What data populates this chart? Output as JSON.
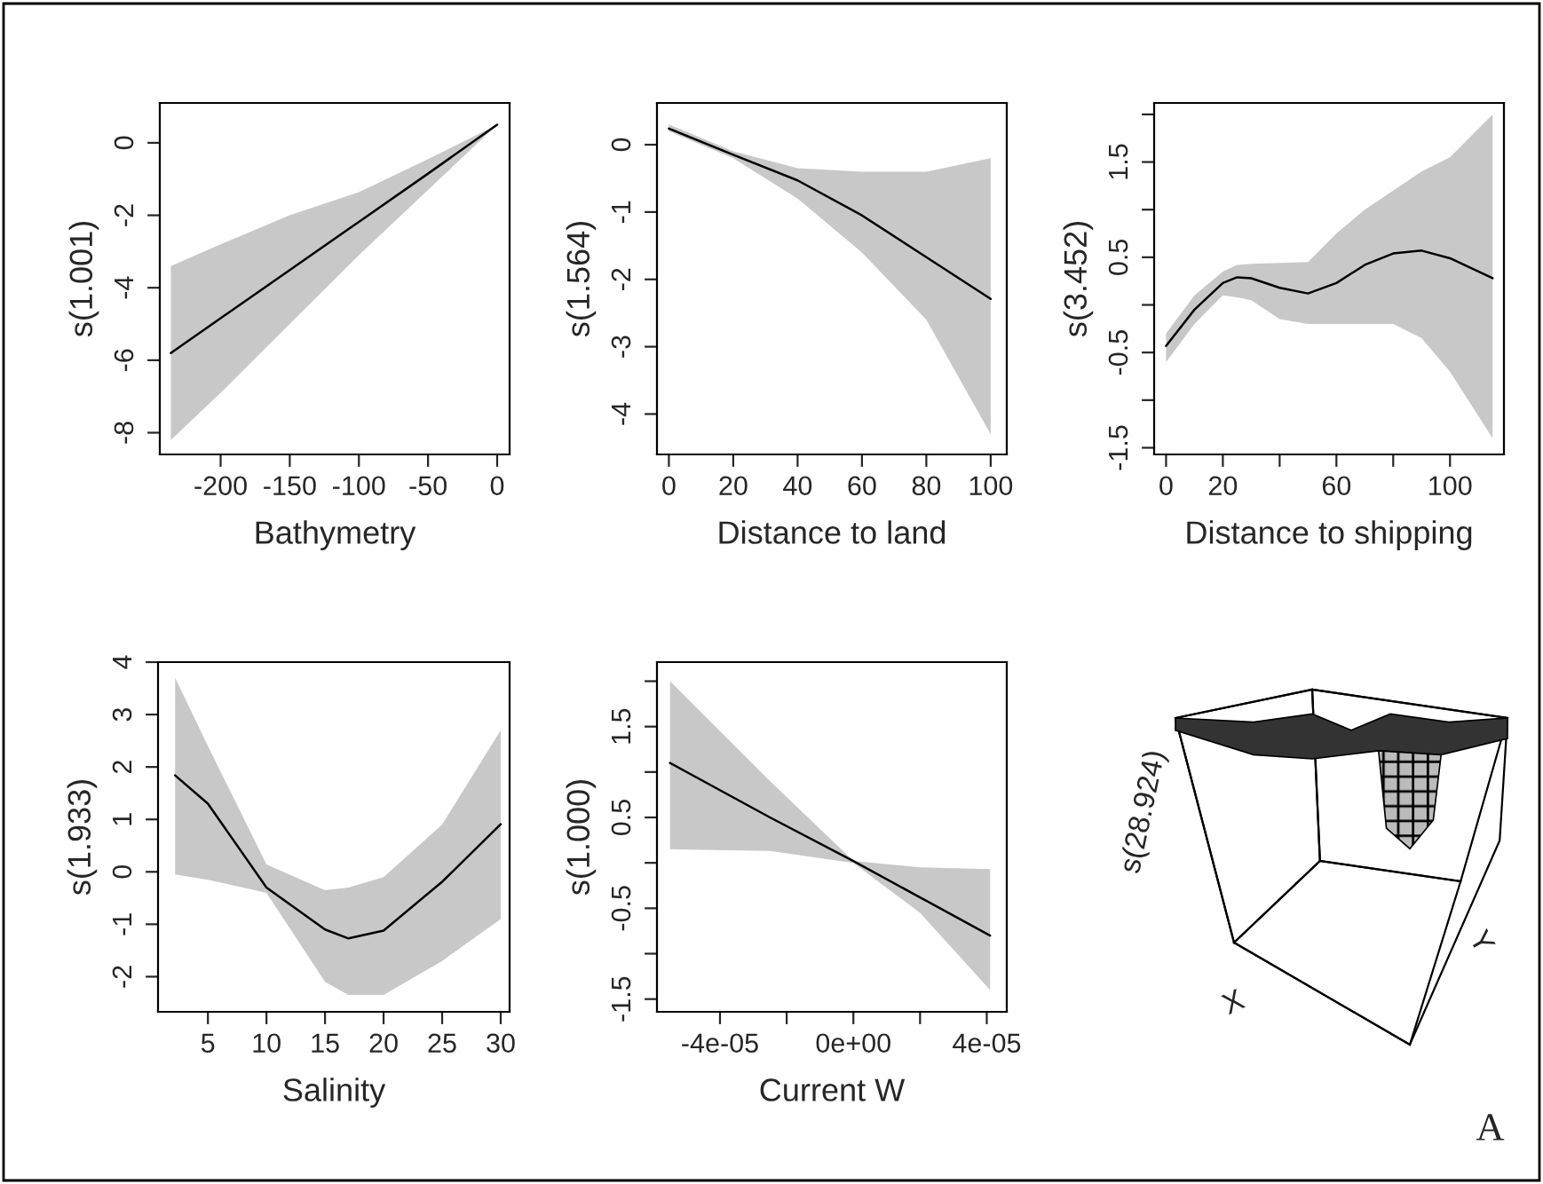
{
  "chart_data": [
    {
      "type": "line",
      "xlabel": "Bathymetry",
      "ylabel": "s(1.001)",
      "xlim": [
        -244,
        9
      ],
      "ylim": [
        -8.6,
        1.1
      ],
      "xticks": [
        -200,
        -150,
        -100,
        -50,
        0
      ],
      "yticks": [
        -8,
        -6,
        -4,
        -2,
        0
      ],
      "grid": false,
      "legend": false,
      "series": [
        {
          "color": "#000000",
          "x": [
            -236,
            -200,
            -150,
            -100,
            -50,
            0
          ],
          "values": [
            -5.8,
            -4.84,
            -3.51,
            -2.18,
            -0.85,
            0.5
          ],
          "lower": [
            -8.2,
            -6.9,
            -5.0,
            -3.1,
            -1.3,
            0.5
          ],
          "upper": [
            -3.4,
            -2.8,
            -2.0,
            -1.36,
            -0.45,
            0.5
          ]
        }
      ]
    },
    {
      "type": "line",
      "xlabel": "Distance to land",
      "ylabel": "s(1.564)",
      "xlim": [
        -3.7,
        105
      ],
      "ylim": [
        -4.6,
        0.62
      ],
      "xticks": [
        0,
        20,
        40,
        60,
        80,
        100
      ],
      "yticks": [
        -4,
        -3,
        -2,
        -1,
        0
      ],
      "grid": false,
      "legend": false,
      "series": [
        {
          "color": "#000000",
          "x": [
            0,
            20,
            40,
            60,
            80,
            100
          ],
          "values": [
            0.24,
            -0.15,
            -0.53,
            -1.05,
            -1.67,
            -2.29
          ],
          "lower": [
            0.2,
            -0.2,
            -0.8,
            -1.6,
            -2.6,
            -4.3
          ],
          "upper": [
            0.3,
            -0.1,
            -0.35,
            -0.4,
            -0.4,
            -0.2
          ]
        }
      ]
    },
    {
      "type": "line",
      "xlabel": "Distance to shipping",
      "ylabel": "s(3.452)",
      "xlim": [
        -4.2,
        119
      ],
      "ylim": [
        -1.57,
        2.12
      ],
      "xticks": [
        0,
        20,
        {
          "value": 40,
          "label": null
        },
        60,
        {
          "value": 80,
          "label": null
        },
        100
      ],
      "yticks": [
        -1.5,
        {
          "value": -1.0,
          "label": null
        },
        -0.5,
        {
          "value": 0.0,
          "label": null
        },
        0.5,
        {
          "value": 1.0,
          "label": null
        },
        1.5,
        {
          "value": 2.0,
          "label": null
        }
      ],
      "grid": false,
      "legend": false,
      "series": [
        {
          "color": "#000000",
          "x": [
            0,
            10,
            20,
            25,
            30,
            40,
            50,
            60,
            70,
            80,
            90,
            100,
            115
          ],
          "values": [
            -0.43,
            -0.05,
            0.23,
            0.29,
            0.28,
            0.18,
            0.12,
            0.23,
            0.42,
            0.54,
            0.57,
            0.49,
            0.28
          ],
          "lower": [
            -0.6,
            -0.2,
            0.1,
            0.08,
            0.05,
            -0.15,
            -0.2,
            -0.2,
            -0.2,
            -0.2,
            -0.35,
            -0.7,
            -1.4
          ],
          "upper": [
            -0.3,
            0.1,
            0.35,
            0.42,
            0.43,
            0.44,
            0.45,
            0.75,
            1.0,
            1.2,
            1.4,
            1.55,
            2.0
          ]
        }
      ]
    },
    {
      "type": "line",
      "xlabel": "Salinity",
      "ylabel": "s(1.933)",
      "xlim": [
        0.74,
        30.76
      ],
      "ylim": [
        -2.67,
        4.0
      ],
      "xticks": [
        5,
        10,
        15,
        20,
        25,
        30
      ],
      "yticks": [
        -2,
        -1,
        0,
        1,
        2,
        3,
        4
      ],
      "grid": false,
      "legend": false,
      "series": [
        {
          "color": "#000000",
          "x": [
            2.2,
            5,
            10,
            15,
            17,
            20,
            25,
            30
          ],
          "values": [
            1.84,
            1.3,
            -0.3,
            -1.1,
            -1.27,
            -1.12,
            -0.19,
            0.91
          ],
          "lower": [
            -0.05,
            -0.15,
            -0.4,
            -2.1,
            -2.35,
            -2.35,
            -1.7,
            -0.9
          ],
          "upper": [
            3.7,
            2.4,
            0.14,
            -0.35,
            -0.3,
            -0.1,
            0.9,
            2.7
          ]
        }
      ]
    },
    {
      "type": "line",
      "xlabel": "Current W",
      "ylabel": "s(1.000)",
      "xlim": [
        -5.89e-05,
        4.6e-05
      ],
      "ylim": [
        -1.64,
        2.21
      ],
      "xticks": [
        {
          "value": -4e-05,
          "label": "-4e-05"
        },
        {
          "value": -2e-05,
          "label": null
        },
        {
          "value": 0,
          "label": "0e+00"
        },
        {
          "value": 2e-05,
          "label": null
        },
        {
          "value": 4e-05,
          "label": "4e-05"
        }
      ],
      "yticks": [
        -1.5,
        {
          "value": -1.0,
          "label": null
        },
        -0.5,
        {
          "value": 0.0,
          "label": null
        },
        0.5,
        {
          "value": 1.0,
          "label": null
        },
        1.5,
        {
          "value": 2.0,
          "label": null
        }
      ],
      "grid": false,
      "legend": false,
      "series": [
        {
          "color": "#000000",
          "x": [
            -5.5e-05,
            -2.5e-05,
            0,
            2e-05,
            4.1e-05
          ],
          "values": [
            1.1,
            0.5,
            0.02,
            -0.38,
            -0.8
          ],
          "lower": [
            0.15,
            0.13,
            0.0,
            -0.55,
            -1.4
          ],
          "upper": [
            2.0,
            0.9,
            0.02,
            -0.05,
            -0.07
          ]
        }
      ]
    },
    {
      "type": "other",
      "annotations": [
        "s(28.924)",
        "X",
        "Y",
        "A"
      ]
    }
  ]
}
